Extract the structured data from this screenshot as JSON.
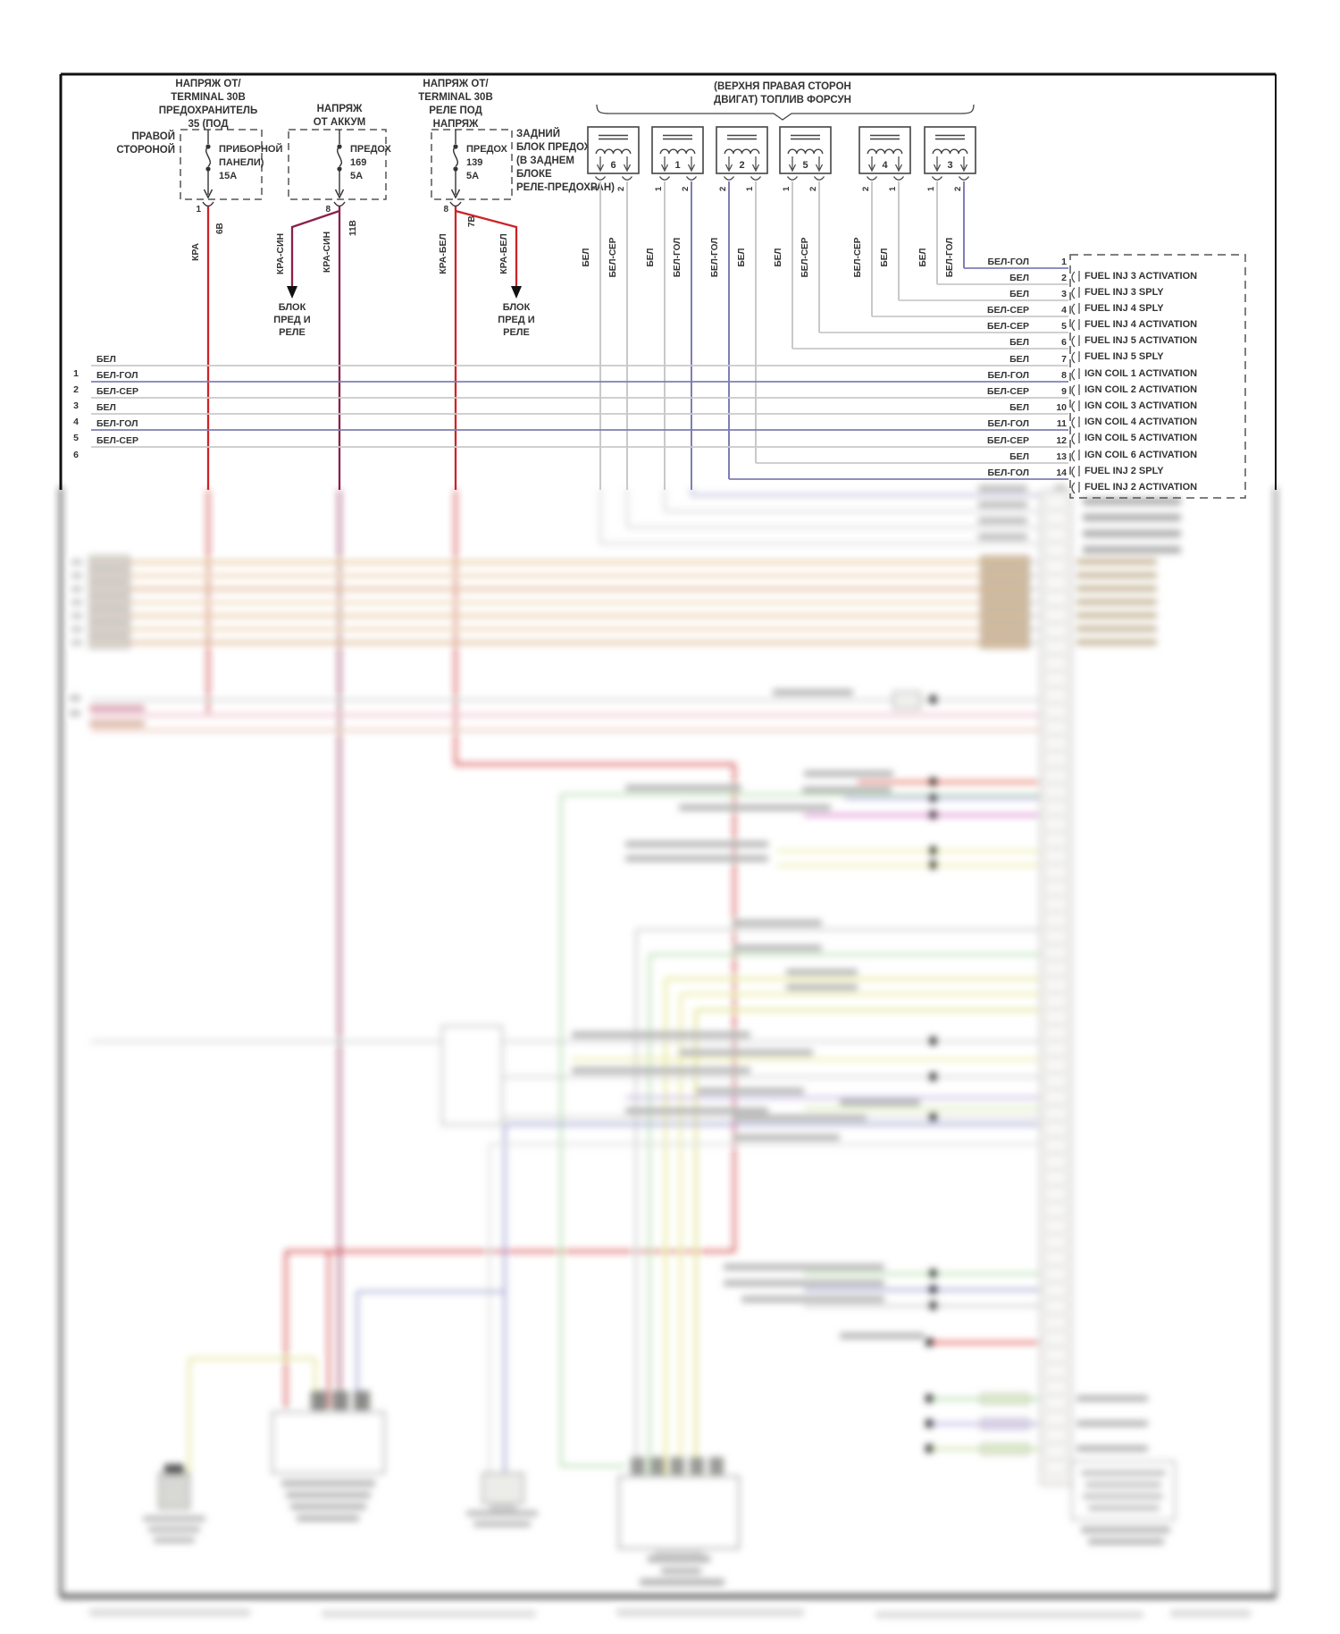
{
  "diagram": {
    "fuses": [
      {
        "header": [
          "НАПРЯЖ ОТ/",
          "TERMINAL 30В",
          "ПРЕДОХРАНИТЕЛЬ",
          "35 (ПОД"
        ],
        "side_label": [
          "ПРАВОЙ",
          "СТОРОНОЙ"
        ],
        "fuse_label": [
          "ПРИБОРНОЙ",
          "ПАНЕЛИ)",
          "15А"
        ],
        "pin": "1",
        "terminal": "6В",
        "wire": "КРА"
      },
      {
        "header": [
          "НАПРЯЖ",
          "ОТ АККУМ"
        ],
        "side_label": [],
        "fuse_label": [
          "ПРЕДОХ",
          "169",
          "5А"
        ],
        "pin": "8",
        "terminal": "11В",
        "wire": "КРА-СИН",
        "branch_wire": "КРА-СИН"
      },
      {
        "header": [
          "НАПРЯЖ ОТ/",
          "TERMINAL 30В",
          "РЕЛЕ ПОД",
          "НАПРЯЖ"
        ],
        "side_label": [
          "ЗАДНИЙ",
          "БЛОК ПРЕДОХРА",
          "(В ЗАДНЕМ",
          "БЛОКЕ",
          "РЕЛЕ-ПРЕДОХРАН)"
        ],
        "fuse_label": [
          "ПРЕДОХ",
          "139",
          "5А"
        ],
        "pin": "8",
        "terminal": "7В",
        "wire": "КРА-БЕЛ",
        "branch_wire": "КРА-БЕЛ"
      }
    ],
    "block_arrow_label": [
      "БЛОК",
      "ПРЕД И",
      "РЕЛЕ"
    ],
    "injector_group": {
      "label": [
        "(ВЕРХНЯ ПРАВАЯ СТОРОН",
        "ДВИГАТ) ТОПЛИВ ФОРСУН"
      ]
    },
    "injectors": [
      {
        "number": "6",
        "pins": [
          {
            "pin": "1",
            "wire": "БЕЛ"
          },
          {
            "pin": "2",
            "wire": "БЕЛ-СЕР"
          }
        ]
      },
      {
        "number": "1",
        "pins": [
          {
            "pin": "1",
            "wire": "БЕЛ"
          },
          {
            "pin": "2",
            "wire": "БЕЛ-ГОЛ"
          }
        ]
      },
      {
        "number": "2",
        "pins": [
          {
            "pin": "2",
            "wire": "БЕЛ-ГОЛ"
          },
          {
            "pin": "1",
            "wire": "БЕЛ"
          }
        ]
      },
      {
        "number": "5",
        "pins": [
          {
            "pin": "1",
            "wire": "БЕЛ"
          },
          {
            "pin": "2",
            "wire": "БЕЛ-СЕР"
          }
        ]
      },
      {
        "number": "4",
        "pins": [
          {
            "pin": "2",
            "wire": "БЕЛ-СЕР"
          },
          {
            "pin": "1",
            "wire": "БЕЛ"
          }
        ]
      },
      {
        "number": "3",
        "pins": [
          {
            "pin": "1",
            "wire": "БЕЛ"
          },
          {
            "pin": "2",
            "wire": "БЕЛ-ГОЛ"
          }
        ]
      }
    ],
    "left_rows": [
      {
        "num": "1",
        "wire": "БЕЛ"
      },
      {
        "num": "2",
        "wire": "БЕЛ-ГОЛ"
      },
      {
        "num": "3",
        "wire": "БЕЛ-СЕР"
      },
      {
        "num": "4",
        "wire": "БЕЛ"
      },
      {
        "num": "5",
        "wire": "БЕЛ-ГОЛ"
      },
      {
        "num": "6",
        "wire": "БЕЛ-СЕР"
      }
    ],
    "ecu_rows": [
      {
        "wire": "БЕЛ-ГОЛ",
        "pin": "1",
        "label": "FUEL INJ 3 ACTIVATION"
      },
      {
        "wire": "БЕЛ",
        "pin": "2",
        "label": "FUEL INJ 3 SPLY"
      },
      {
        "wire": "БЕЛ",
        "pin": "3",
        "label": "FUEL INJ 4 SPLY"
      },
      {
        "wire": "БЕЛ-СЕР",
        "pin": "4",
        "label": "FUEL INJ 4 ACTIVATION"
      },
      {
        "wire": "БЕЛ-СЕР",
        "pin": "5",
        "label": "FUEL INJ 5 ACTIVATION"
      },
      {
        "wire": "БЕЛ",
        "pin": "6",
        "label": "FUEL INJ 5 SPLY"
      },
      {
        "wire": "БЕЛ",
        "pin": "7",
        "label": "IGN COIL 1 ACTIVATION"
      },
      {
        "wire": "БЕЛ-ГОЛ",
        "pin": "8",
        "label": "IGN COIL 2 ACTIVATION"
      },
      {
        "wire": "БЕЛ-СЕР",
        "pin": "9",
        "label": "IGN COIL 3 ACTIVATION"
      },
      {
        "wire": "БЕЛ",
        "pin": "10",
        "label": "IGN COIL 4 ACTIVATION"
      },
      {
        "wire": "БЕЛ-ГОЛ",
        "pin": "11",
        "label": "IGN COIL 5 ACTIVATION"
      },
      {
        "wire": "БЕЛ-СЕР",
        "pin": "12",
        "label": "IGN COIL 6 ACTIVATION"
      },
      {
        "wire": "БЕЛ",
        "pin": "13",
        "label": "FUEL INJ 2 SPLY"
      },
      {
        "wire": "БЕЛ-ГОЛ",
        "pin": "14",
        "label": "FUEL INJ 2 ACTIVATION"
      }
    ],
    "colors": {
      "red": "#cc2327",
      "maroon": "#8c1f4a",
      "blue": "#7f7fb2",
      "gray": "#c9c9c9",
      "line": "#3c3c3c"
    }
  }
}
